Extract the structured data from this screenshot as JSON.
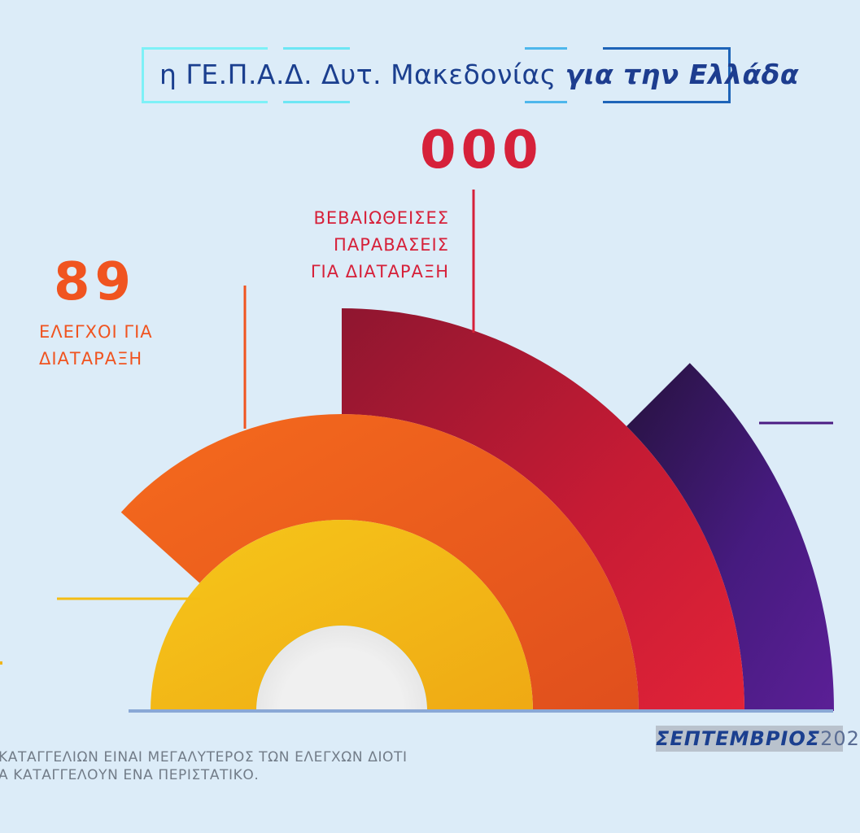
{
  "header": {
    "prefix": "η ΓΕ.Π.Α.Δ. Δυτ. Μακεδονίας ",
    "emphasis": "για την Ελλάδα"
  },
  "metrics": {
    "violations": {
      "value": "000",
      "label_lines": [
        "ΒΕΒΑΙΩΘΕΙΣΕΣ",
        "ΠΑΡΑΒΑΣΕΙΣ",
        "ΓΙΑ ΔΙΑΤΑΡΑΞΗ"
      ]
    },
    "checks": {
      "value": "89",
      "label_lines": [
        "ΕΛΕΓΧΟΙ ΓΙΑ",
        "ΔΙΑΤΑΡΑΞΗ"
      ]
    }
  },
  "month": {
    "name": "ΣΕΠΤΕΜΒΡΙΟΣ",
    "year": "202"
  },
  "footnote": {
    "lines": [
      "ΚΑΤΑΓΓΕΛΙΩΝ ΕΙΝΑΙ ΜΕΓΑΛΥΤΕΡΟΣ ΤΩΝ ΕΛΕΓΧΩΝ ΔΙΟΤΙ",
      "Α ΚΑΤΑΓΓΕΛΟΥΝ ΕΝΑ ΠΕΡΙΣΤΑΤΙΚΟ."
    ]
  },
  "colors": {
    "background": "#dcecf8",
    "red": "#d6213a",
    "orange": "#f05420",
    "yellow": "#f4bd14",
    "purple": "#4b1d84",
    "baseline": "#8aa8d6",
    "center": "#ececec",
    "frame_light": "#7ef1f7",
    "frame_dark": "#1e64b8"
  },
  "chart_data": {
    "type": "radial-bar",
    "series": [
      {
        "name": "yellow-ring",
        "value": 180
      },
      {
        "name": "orange-ring",
        "value": 138
      },
      {
        "name": "red-ring",
        "value": 90
      },
      {
        "name": "purple-ring",
        "value": 45
      }
    ],
    "value_range": [
      0,
      180
    ],
    "labels": [
      {
        "series": "red-ring",
        "value": "000",
        "text": [
          "ΒΕΒΑΙΩΘΕΙΣΕΣ",
          "ΠΑΡΑΒΑΣΕΙΣ",
          "ΓΙΑ ΔΙΑΤΑΡΑΞΗ"
        ]
      },
      {
        "series": "orange-ring",
        "value": "89",
        "text": [
          "ΕΛΕΓΧΟΙ ΓΙΑ",
          "ΔΙΑΤΑΡΑΞΗ"
        ]
      }
    ]
  }
}
